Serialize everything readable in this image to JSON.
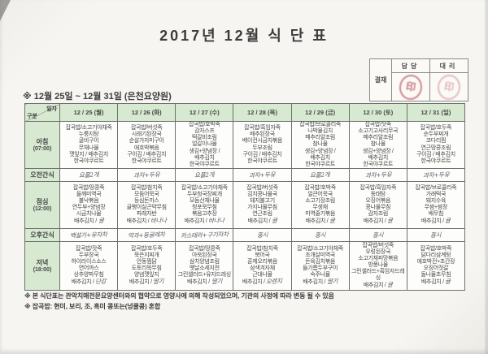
{
  "title": "2017년 12월 식 단 표",
  "approval": {
    "row_label": "결재",
    "col1": "담당",
    "col2": "대리",
    "stamp1": "印",
    "stamp2": "印"
  },
  "subtitle": "※ 12월 25일 ~ 12월 31일 (은천요양원)",
  "table": {
    "corner_top": "일자",
    "corner_bottom": "구분",
    "days": [
      "12 / 25 (월)",
      "12 / 26 (화)",
      "12 / 27 (수)",
      "12 / 28 (목)",
      "12 / 29 (금)",
      "12 / 30 (토)",
      "12 / 31 (일)"
    ],
    "rows": [
      {
        "label": "아침",
        "time": "(07:00)",
        "style": "printed",
        "cells": [
          [
            "잡곡밥/소고기야채죽",
            "누룽지탕",
            "굴비구이",
            "무채나물",
            "깻잎지 / 배추김치",
            "한국야쿠르트"
          ],
          [
            "잡곡밥/버섯죽",
            "시래기된장국",
            "순살가자미구이",
            "애호박볶음",
            "구이김 / 배추김치",
            "한국야쿠르트"
          ],
          [
            "잡곡밥/호박죽",
            "감자스프",
            "떡갈비조림",
            "얼갈이나물",
            "생김+양념장 /",
            "배추김치",
            "한국야쿠르트"
          ],
          [
            "잡곡밥/흑임자죽",
            "배추된장국",
            "베이컨시금치볶음",
            "두부조림",
            "구이김 / 배추김치",
            "한국야쿠르트"
          ],
          [
            "잡곡밥/브로콜리죽",
            "나박물김치",
            "메추리알조림",
            "참나물",
            "생김+양념장 /",
            "배추김치",
            "한국야쿠르트"
          ],
          [
            "잡곡밥/잣죽",
            "소고기고사리무국",
            "메추리알조림",
            "참나물",
            "생김+양념장 /",
            "배추김치",
            "한국야쿠르트"
          ],
          [
            "잡곡밥/호두죽",
            "순두부찌개",
            "코다리찜",
            "연근땅콩조림",
            "구이김 / 배추김치",
            "한국야쿠르트"
          ]
        ]
      },
      {
        "label": "오전간식",
        "time": "",
        "style": "handwritten",
        "cells": [
          [
            "요플2개"
          ],
          [
            "과자+두유"
          ],
          [
            "요플2개"
          ],
          [
            "과자+두유"
          ],
          [
            "요플2개"
          ],
          [
            "과자+두유"
          ],
          [
            "과자+두유"
          ]
        ]
      },
      {
        "label": "점심",
        "time": "(12:00)",
        "style": "printed",
        "cells": [
          [
            "잡곡밥/땅콩죽",
            "들깨미역국",
            "불낙볶음",
            "연두부+양념장",
            "시금치나물",
            {
              "pre": "배추김치 /",
              "hw": "귤"
            }
          ],
          [
            "잡곡밥/참치죽",
            "모듬어묵국",
            "등심돈까스",
            "골뱅이실곤약무침",
            "파래자반",
            {
              "pre": "배추김치 /",
              "hw": "바나나"
            }
          ],
          [
            "잡곡밥/소고기야채죽",
            "두부청국장찌개",
            "모듬산채나물",
            "청포묵무침",
            "볶음고추장",
            {
              "pre": "배추김치 /",
              "hw": "바나나"
            }
          ],
          [
            "잡곡밥/버섯죽",
            "김치콩나물국",
            "돼지불고기",
            "가지나물무침",
            "연근조림",
            {
              "pre": "배추김치 /",
              "hw": "귤"
            }
          ],
          [
            "잡곡밥/호박죽",
            "얼큰어묵국",
            "소고기장조림",
            "무생채",
            "미역줄기볶음",
            {
              "pre": "배추김치 /",
              "hw": "귤"
            }
          ],
          [
            "잡곡밥/흑임자죽",
            "동태탕",
            "오징어볶음",
            "콩나물무침",
            "감자조림",
            {
              "pre": "배추김치 /",
              "hw": "귤"
            }
          ],
          [
            "잡곡밥/브로콜리죽",
            "가래떡국",
            "돼지수육",
            "무쌈+쌈장",
            "배무침",
            {
              "pre": "배추김치 /",
              "hw": "귤"
            }
          ]
        ]
      },
      {
        "label": "오후간식",
        "time": "",
        "style": "handwritten",
        "cells": [
          [
            "백설기+유자차"
          ],
          [
            "약과+둥굴레차"
          ],
          [
            "카스테라+구기자차"
          ],
          [
            "홍시"
          ],
          [
            "홍시"
          ],
          [
            "홍시"
          ],
          [
            "홍시"
          ]
        ]
      },
      {
        "label": "저녁",
        "time": "(18:00)",
        "style": "printed",
        "cells": [
          [
            "잡곡밥/잣죽",
            "두부장국",
            "하이라이스소스",
            "연어까스",
            "상추양파무침",
            {
              "pre": "배추김치 /",
              "hw": "단감"
            }
          ],
          [
            "잡곡밥/호두죽",
            "묵은지찌개",
            "안동찜닭",
            "도토리묵무침",
            "양념깻잎지",
            {
              "pre": "배추김치 /",
              "hw": "딸기"
            }
          ],
          [
            "잡곡밥/땅콩죽",
            "아욱된장국",
            "삼치양념조림",
            "옛날소세지전",
            "그린샐러드+유자드레싱",
            {
              "pre": "배추김치 /",
              "hw": "딸기"
            }
          ],
          [
            "잡곡밥/참치죽",
            "북어국",
            "훈제오리볶음",
            "삼색겨자채",
            "근대나물",
            {
              "pre": "배추김치 /",
              "hw": "오렌지"
            }
          ],
          [
            "잡곡밥/소고기야채죽",
            "조개살미역국",
            "돈육김치볶음",
            "들기름두부구이",
            "숙주나물",
            {
              "pre": "배추김치 /",
              "hw": "딸기"
            }
          ],
          [
            "잡곡밥/버섯죽",
            "우렁된장국",
            "소고기채피망볶음",
            "방풍나물",
            "그린샐러드+흑임자드레싱",
            {
              "pre": "배추김치 /",
              "hw": "귤"
            }
          ],
          [
            "잡곡밥/호박죽",
            "닭다리삼계탕",
            "애호박전+초간장",
            "오징어젓갈",
            "돌나물초무침",
            {
              "pre": "배추김치 /",
              "hw": "귤"
            }
          ]
        ]
      }
    ]
  },
  "footnotes": [
    "※ 본 식단표는 관악치매전문요양센터와의 협약으로 영양사에 의해 작성되었으며, 기관의 사정에 따라 변동 될 수 있음",
    "※ 잡곡밥: 현미, 보리, 조, 흑미 콩또는(넝쿨콩) 혼합"
  ]
}
